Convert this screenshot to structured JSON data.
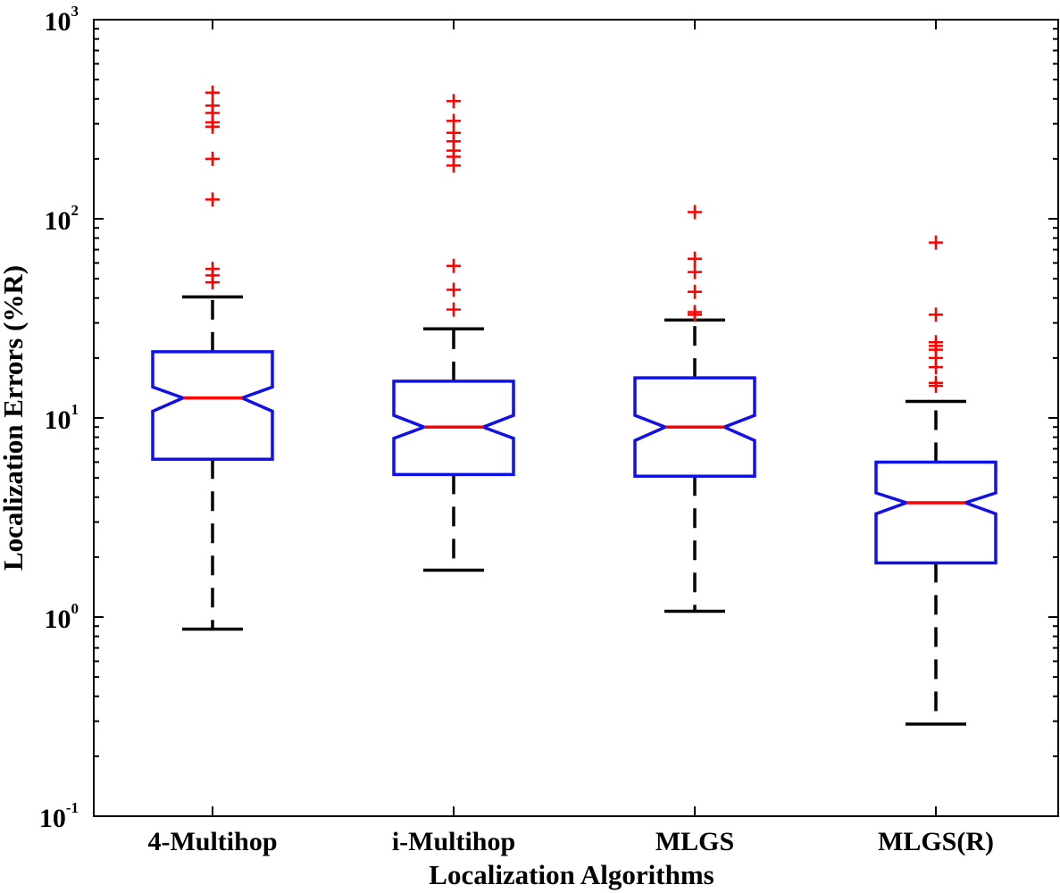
{
  "chart_data": {
    "type": "boxplot",
    "title": "",
    "xlabel": "Localization Algorithms",
    "ylabel": "Localization Errors (%R)",
    "yscale": "log",
    "ylim": [
      0.1,
      1000
    ],
    "ytick_labels": [
      {
        "base": "10",
        "exp": "-1",
        "value": 0.1
      },
      {
        "base": "10",
        "exp": "0",
        "value": 1
      },
      {
        "base": "10",
        "exp": "1",
        "value": 10
      },
      {
        "base": "10",
        "exp": "2",
        "value": 100
      },
      {
        "base": "10",
        "exp": "3",
        "value": 1000
      }
    ],
    "categories": [
      "4-Multihop",
      "i-Multihop",
      "MLGS",
      "MLGS(R)"
    ],
    "boxes": [
      {
        "name": "4-Multihop",
        "whisker_low": 0.87,
        "q1": 6.2,
        "median": 12.6,
        "q3": 21.5,
        "whisker_high": 40.5,
        "notch_low": 10.8,
        "notch_high": 14.3,
        "outliers": [
          48,
          52,
          56,
          125,
          200,
          290,
          305,
          340,
          370,
          430
        ]
      },
      {
        "name": "i-Multihop",
        "whisker_low": 1.72,
        "q1": 5.2,
        "median": 9.0,
        "q3": 15.3,
        "whisker_high": 28.0,
        "notch_low": 7.9,
        "notch_high": 10.3,
        "outliers": [
          35,
          44,
          58,
          185,
          205,
          220,
          245,
          270,
          310,
          390
        ]
      },
      {
        "name": "MLGS",
        "whisker_low": 1.07,
        "q1": 5.1,
        "median": 9.0,
        "q3": 15.9,
        "whisker_high": 31.0,
        "notch_low": 7.7,
        "notch_high": 10.3,
        "outliers": [
          33,
          34,
          43,
          54,
          63,
          108
        ]
      },
      {
        "name": "MLGS(R)",
        "whisker_low": 0.29,
        "q1": 1.87,
        "median": 3.75,
        "q3": 6.0,
        "whisker_high": 12.1,
        "notch_low": 3.3,
        "notch_high": 4.2,
        "outliers": [
          14.5,
          15,
          18,
          20,
          22,
          23,
          24,
          33,
          76
        ]
      }
    ],
    "colors": {
      "box": "#1010e8",
      "median": "#ff0000",
      "whisker": "#000000",
      "outlier": "#ff0000",
      "axis": "#000000"
    }
  }
}
